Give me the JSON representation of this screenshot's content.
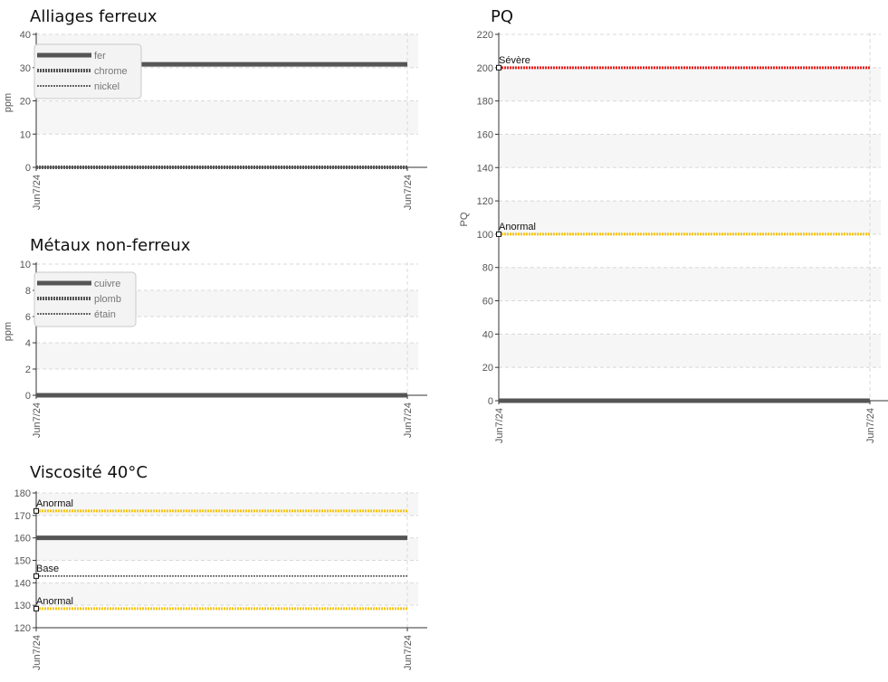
{
  "chart_data": [
    {
      "id": "ferreux",
      "type": "line",
      "title": "Alliages ferreux",
      "ylabel": "ppm",
      "ylim": [
        0,
        40
      ],
      "yticks": [
        0,
        10,
        20,
        30,
        40
      ],
      "x_tick_labels": [
        "Jun7/24",
        "Jun7/24"
      ],
      "grid": true,
      "legend_position": "top-left",
      "series": [
        {
          "name": "fer",
          "style": "solid",
          "color": "#555555",
          "values": [
            31,
            31
          ]
        },
        {
          "name": "chrome",
          "style": "dense-dots",
          "color": "#555555",
          "values": [
            0,
            0
          ]
        },
        {
          "name": "nickel",
          "style": "fine-dots",
          "color": "#666666",
          "values": [
            0,
            0
          ]
        }
      ],
      "reference_lines": []
    },
    {
      "id": "nonferreux",
      "type": "line",
      "title": "Métaux non-ferreux",
      "ylabel": "ppm",
      "ylim": [
        0,
        10
      ],
      "yticks": [
        0,
        2,
        4,
        6,
        8,
        10
      ],
      "x_tick_labels": [
        "Jun7/24",
        "Jun7/24"
      ],
      "grid": true,
      "legend_position": "top-left",
      "series": [
        {
          "name": "cuivre",
          "style": "solid",
          "color": "#555555",
          "values": [
            0,
            0
          ]
        },
        {
          "name": "plomb",
          "style": "dense-dots",
          "color": "#555555",
          "values": [
            0,
            0
          ]
        },
        {
          "name": "étain",
          "style": "fine-dots",
          "color": "#666666",
          "values": [
            0,
            0
          ]
        }
      ],
      "reference_lines": []
    },
    {
      "id": "viscosite",
      "type": "line",
      "title": "Viscosité 40°C",
      "ylabel": "",
      "ylim": [
        120,
        180
      ],
      "yticks": [
        120,
        130,
        140,
        150,
        160,
        170,
        180
      ],
      "x_tick_labels": [
        "Jun7/24",
        "Jun7/24"
      ],
      "grid": true,
      "legend_position": "",
      "series": [
        {
          "name": "",
          "style": "solid",
          "color": "#555555",
          "values": [
            160,
            160
          ]
        }
      ],
      "reference_lines": [
        {
          "label": "Anormal",
          "value": 172,
          "color": "#f5c518",
          "style": "dotted"
        },
        {
          "label": "Base",
          "value": 143,
          "color": "#555555",
          "style": "fine-dots"
        },
        {
          "label": "Anormal",
          "value": 128.5,
          "color": "#f5c518",
          "style": "dotted"
        }
      ]
    },
    {
      "id": "pq",
      "type": "line",
      "title": "PQ",
      "ylabel": "PQ",
      "ylim": [
        0,
        220
      ],
      "yticks": [
        0,
        20,
        40,
        60,
        80,
        100,
        120,
        140,
        160,
        180,
        200,
        220
      ],
      "x_tick_labels": [
        "Jun7/24",
        "Jun7/24"
      ],
      "grid": true,
      "legend_position": "",
      "series": [
        {
          "name": "",
          "style": "solid",
          "color": "#555555",
          "values": [
            0,
            0
          ]
        }
      ],
      "reference_lines": [
        {
          "label": "Sévère",
          "value": 200,
          "color": "#e8201f",
          "style": "dotted"
        },
        {
          "label": "Anormal",
          "value": 100,
          "color": "#f5c518",
          "style": "dotted"
        }
      ]
    }
  ]
}
